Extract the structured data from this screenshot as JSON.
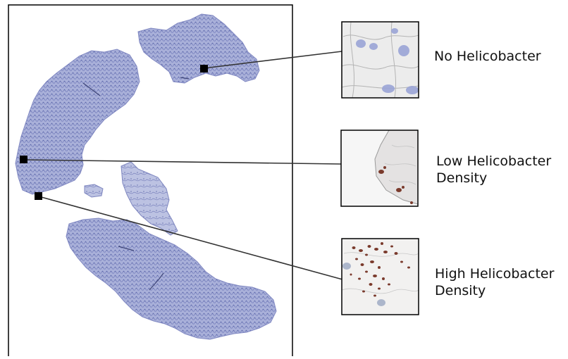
{
  "figure": {
    "colors": {
      "frame": "#000000",
      "connector": "#333333",
      "tissue": "#7f87c0",
      "tissue_light": "#b6bcdf",
      "stain_brown": "#7a3a2c",
      "zoom_bg": "#f2f1f0"
    },
    "insets": [
      {
        "id": "none",
        "label_lines": [
          "No Helicobacter"
        ]
      },
      {
        "id": "low",
        "label_lines": [
          "Low Helicobacter",
          "Density"
        ]
      },
      {
        "id": "high",
        "label_lines": [
          "High Helicobacter",
          "Density"
        ]
      }
    ]
  }
}
